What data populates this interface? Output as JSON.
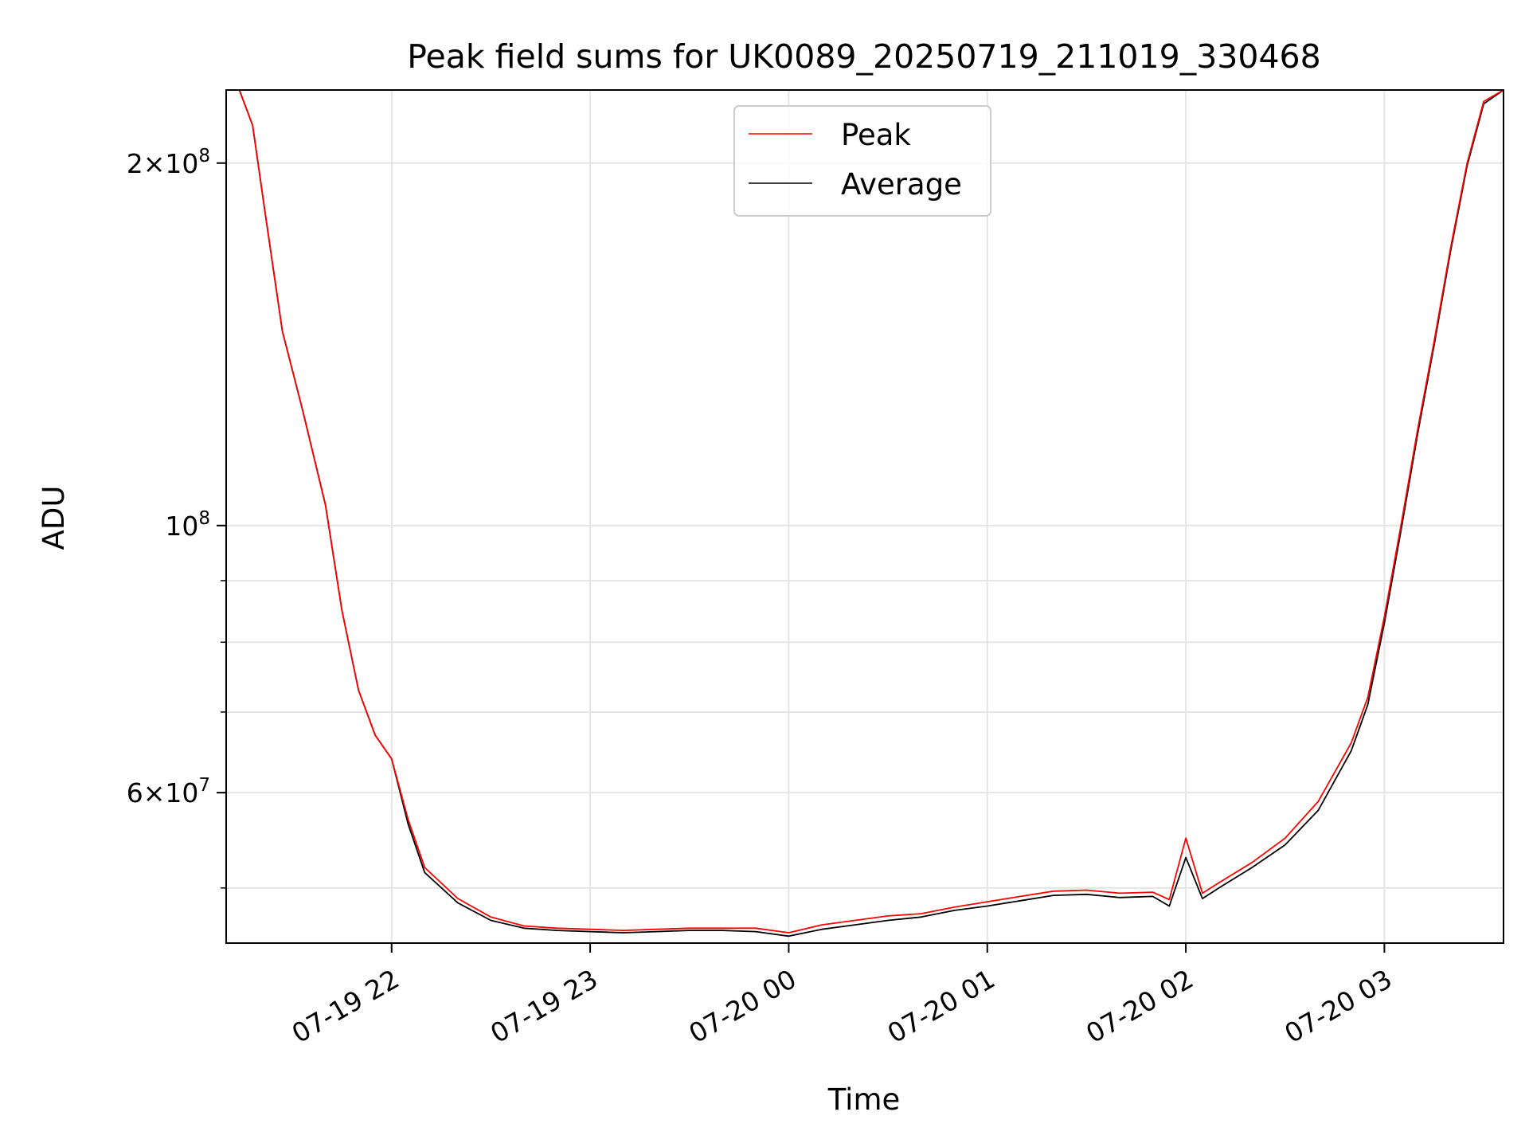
{
  "chart_data": {
    "type": "line",
    "title": "Peak field sums for UK0089_20250719_211019_330468",
    "xlabel": "Time",
    "ylabel": "ADU",
    "yscale": "log",
    "ylim": [
      45000000,
      230000000
    ],
    "xlim": [
      "2025-07-19 21:10",
      "2025-07-20 03:36"
    ],
    "grid": true,
    "legend": "upper center",
    "x_ticks": [
      {
        "label": "07-19 22",
        "t": "2025-07-19 22:00"
      },
      {
        "label": "07-19 23",
        "t": "2025-07-19 23:00"
      },
      {
        "label": "07-20 00",
        "t": "2025-07-20 00:00"
      },
      {
        "label": "07-20 01",
        "t": "2025-07-20 01:00"
      },
      {
        "label": "07-20 02",
        "t": "2025-07-20 02:00"
      },
      {
        "label": "07-20 03",
        "t": "2025-07-20 03:00"
      }
    ],
    "y_ticks": [
      {
        "value": 200000000,
        "mant": "2",
        "exp": "8"
      },
      {
        "value": 100000000,
        "mant": "",
        "exp": "8"
      },
      {
        "value": 60000000,
        "mant": "6",
        "exp": "7"
      }
    ],
    "y_minor_ticks": [
      50000000,
      70000000,
      80000000,
      90000000
    ],
    "series": [
      {
        "name": "Peak",
        "color": "#ff0000",
        "t": [
          "2025-07-19 21:10",
          "2025-07-19 21:14",
          "2025-07-19 21:18",
          "2025-07-19 21:22",
          "2025-07-19 21:27",
          "2025-07-19 21:33",
          "2025-07-19 21:40",
          "2025-07-19 21:45",
          "2025-07-19 21:50",
          "2025-07-19 21:55",
          "2025-07-19 22:00",
          "2025-07-19 22:05",
          "2025-07-19 22:10",
          "2025-07-19 22:20",
          "2025-07-19 22:30",
          "2025-07-19 22:40",
          "2025-07-19 22:50",
          "2025-07-19 23:00",
          "2025-07-19 23:10",
          "2025-07-19 23:20",
          "2025-07-19 23:30",
          "2025-07-19 23:40",
          "2025-07-19 23:50",
          "2025-07-20 00:00",
          "2025-07-20 00:10",
          "2025-07-20 00:20",
          "2025-07-20 00:30",
          "2025-07-20 00:40",
          "2025-07-20 00:50",
          "2025-07-20 01:00",
          "2025-07-20 01:10",
          "2025-07-20 01:20",
          "2025-07-20 01:30",
          "2025-07-20 01:40",
          "2025-07-20 01:50",
          "2025-07-20 01:55",
          "2025-07-20 02:00",
          "2025-07-20 02:05",
          "2025-07-20 02:10",
          "2025-07-20 02:20",
          "2025-07-20 02:30",
          "2025-07-20 02:40",
          "2025-07-20 02:50",
          "2025-07-20 02:55",
          "2025-07-20 03:00",
          "2025-07-20 03:05",
          "2025-07-20 03:10",
          "2025-07-20 03:15",
          "2025-07-20 03:20",
          "2025-07-20 03:25",
          "2025-07-20 03:30",
          "2025-07-20 03:36"
        ],
        "values": [
          230000000,
          230000000,
          215000000,
          180000000,
          145000000,
          125000000,
          104000000,
          85000000,
          73000000,
          67000000,
          64000000,
          57000000,
          52000000,
          49000000,
          47300000,
          46500000,
          46300000,
          46200000,
          46100000,
          46200000,
          46300000,
          46300000,
          46300000,
          45900000,
          46600000,
          47000000,
          47400000,
          47600000,
          48200000,
          48700000,
          49200000,
          49700000,
          49800000,
          49500000,
          49600000,
          48900000,
          55000000,
          49500000,
          50500000,
          52500000,
          55000000,
          59000000,
          66000000,
          72000000,
          84000000,
          100000000,
          120000000,
          142000000,
          170000000,
          200000000,
          225000000,
          230000000
        ]
      },
      {
        "name": "Average",
        "color": "#000000",
        "t": [
          "2025-07-19 21:10",
          "2025-07-19 21:14",
          "2025-07-19 21:18",
          "2025-07-19 21:22",
          "2025-07-19 21:27",
          "2025-07-19 21:33",
          "2025-07-19 21:40",
          "2025-07-19 21:45",
          "2025-07-19 21:50",
          "2025-07-19 21:55",
          "2025-07-19 22:00",
          "2025-07-19 22:05",
          "2025-07-19 22:10",
          "2025-07-19 22:20",
          "2025-07-19 22:30",
          "2025-07-19 22:40",
          "2025-07-19 22:50",
          "2025-07-19 23:00",
          "2025-07-19 23:10",
          "2025-07-19 23:20",
          "2025-07-19 23:30",
          "2025-07-19 23:40",
          "2025-07-19 23:50",
          "2025-07-20 00:00",
          "2025-07-20 00:10",
          "2025-07-20 00:20",
          "2025-07-20 00:30",
          "2025-07-20 00:40",
          "2025-07-20 00:50",
          "2025-07-20 01:00",
          "2025-07-20 01:10",
          "2025-07-20 01:20",
          "2025-07-20 01:30",
          "2025-07-20 01:40",
          "2025-07-20 01:50",
          "2025-07-20 01:55",
          "2025-07-20 02:00",
          "2025-07-20 02:05",
          "2025-07-20 02:10",
          "2025-07-20 02:20",
          "2025-07-20 02:30",
          "2025-07-20 02:40",
          "2025-07-20 02:50",
          "2025-07-20 02:55",
          "2025-07-20 03:00",
          "2025-07-20 03:05",
          "2025-07-20 03:10",
          "2025-07-20 03:15",
          "2025-07-20 03:20",
          "2025-07-20 03:25",
          "2025-07-20 03:30",
          "2025-07-20 03:36"
        ],
        "values": [
          230000000,
          230000000,
          215000000,
          180000000,
          145000000,
          125000000,
          104000000,
          85000000,
          73000000,
          67000000,
          64000000,
          56500000,
          51500000,
          48600000,
          47000000,
          46300000,
          46100000,
          46000000,
          45900000,
          46000000,
          46100000,
          46100000,
          46000000,
          45600000,
          46200000,
          46600000,
          47000000,
          47300000,
          47900000,
          48300000,
          48800000,
          49300000,
          49400000,
          49100000,
          49200000,
          48300000,
          53000000,
          49000000,
          50000000,
          52000000,
          54300000,
          58000000,
          65000000,
          71000000,
          83000000,
          99000000,
          119000000,
          141000000,
          169000000,
          199000000,
          224000000,
          230000000
        ]
      }
    ]
  }
}
